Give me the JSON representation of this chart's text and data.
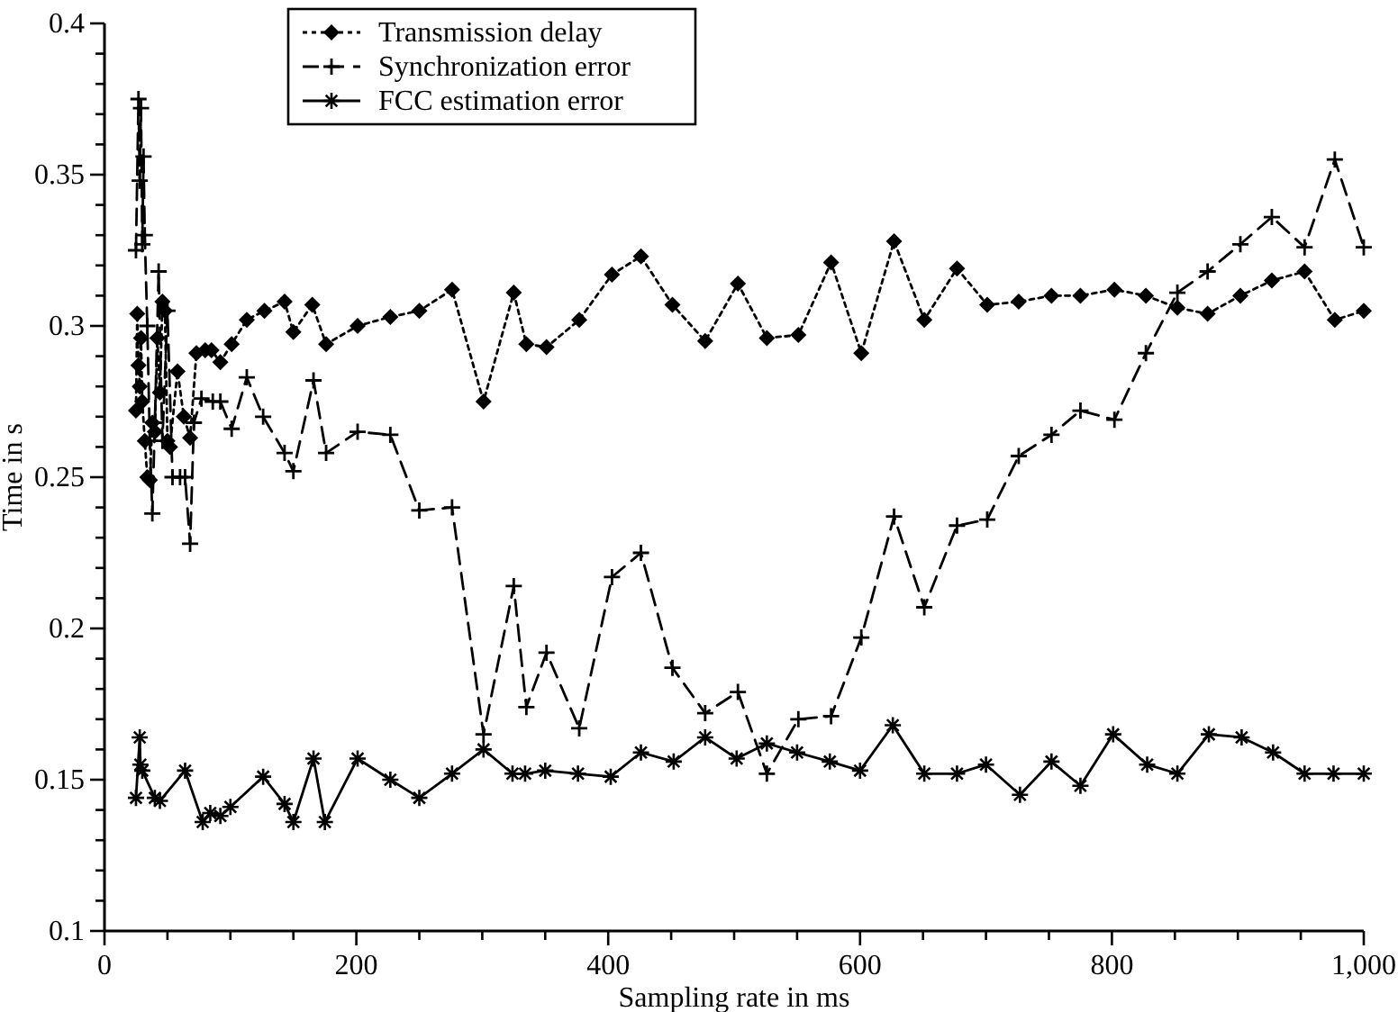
{
  "chart_data": {
    "type": "line",
    "xlabel": "Sampling rate in ms",
    "ylabel": "Time in s",
    "xlim": [
      0,
      1000
    ],
    "xticks": [
      0,
      {
        "value": 50,
        "label": null
      },
      {
        "value": 100,
        "label": null
      },
      {
        "value": 150,
        "label": null
      },
      200,
      {
        "value": 250,
        "label": null
      },
      {
        "value": 300,
        "label": null
      },
      {
        "value": 350,
        "label": null
      },
      400,
      {
        "value": 450,
        "label": null
      },
      {
        "value": 500,
        "label": null
      },
      {
        "value": 550,
        "label": null
      },
      600,
      {
        "value": 650,
        "label": null
      },
      {
        "value": 700,
        "label": null
      },
      {
        "value": 750,
        "label": null
      },
      800,
      {
        "value": 850,
        "label": null
      },
      {
        "value": 900,
        "label": null
      },
      {
        "value": 950,
        "label": null
      },
      {
        "value": 1000,
        "label": "1,000"
      }
    ],
    "ylim": [
      0.1,
      0.4
    ],
    "yticks": [
      0.1,
      {
        "value": 0.11,
        "label": null
      },
      {
        "value": 0.12,
        "label": null
      },
      {
        "value": 0.13,
        "label": null
      },
      {
        "value": 0.14,
        "label": null
      },
      0.15,
      {
        "value": 0.16,
        "label": null
      },
      {
        "value": 0.17,
        "label": null
      },
      {
        "value": 0.18,
        "label": null
      },
      {
        "value": 0.19,
        "label": null
      },
      0.2,
      {
        "value": 0.21,
        "label": null
      },
      {
        "value": 0.22,
        "label": null
      },
      {
        "value": 0.23,
        "label": null
      },
      {
        "value": 0.24,
        "label": null
      },
      0.25,
      {
        "value": 0.26,
        "label": null
      },
      {
        "value": 0.27,
        "label": null
      },
      {
        "value": 0.28,
        "label": null
      },
      {
        "value": 0.29,
        "label": null
      },
      0.3,
      {
        "value": 0.31,
        "label": null
      },
      {
        "value": 0.32,
        "label": null
      },
      {
        "value": 0.33,
        "label": null
      },
      {
        "value": 0.34,
        "label": null
      },
      0.35,
      {
        "value": 0.36,
        "label": null
      },
      {
        "value": 0.37,
        "label": null
      },
      {
        "value": 0.38,
        "label": null
      },
      {
        "value": 0.39,
        "label": null
      },
      0.4
    ],
    "grid": false,
    "legend": "top",
    "series": [
      {
        "name": "Transmission delay",
        "color": "#000000",
        "marker": "diamond",
        "line_style": "dotted",
        "x": [
          25,
          26,
          27,
          28,
          29,
          30,
          32,
          34,
          36,
          38,
          40,
          42,
          44,
          46,
          48,
          50,
          52,
          58,
          63,
          68,
          73,
          80,
          85,
          92,
          101,
          113,
          127,
          143,
          150,
          165,
          176,
          201,
          227,
          250,
          276,
          301,
          325,
          335,
          351,
          377,
          403,
          426,
          451,
          477,
          503,
          526,
          551,
          577,
          601,
          627,
          651,
          677,
          701,
          726,
          752,
          775,
          802,
          827,
          852,
          876,
          902,
          927,
          953,
          977,
          1000
        ],
        "values": [
          0.272,
          0.304,
          0.287,
          0.28,
          0.296,
          0.275,
          0.262,
          0.25,
          0.249,
          0.268,
          0.265,
          0.296,
          0.278,
          0.308,
          0.305,
          0.262,
          0.26,
          0.285,
          0.27,
          0.263,
          0.291,
          0.292,
          0.292,
          0.288,
          0.294,
          0.302,
          0.305,
          0.308,
          0.298,
          0.307,
          0.294,
          0.3,
          0.303,
          0.305,
          0.312,
          0.275,
          0.311,
          0.294,
          0.293,
          0.302,
          0.317,
          0.323,
          0.307,
          0.295,
          0.314,
          0.296,
          0.297,
          0.321,
          0.291,
          0.328,
          0.302,
          0.319,
          0.307,
          0.308,
          0.31,
          0.31,
          0.312,
          0.31,
          0.306,
          0.304,
          0.31,
          0.315,
          0.318,
          0.302,
          0.305
        ]
      },
      {
        "name": "Synchronization error",
        "color": "#000000",
        "marker": "cross",
        "line_style": "dashed",
        "x": [
          25,
          27,
          28,
          29,
          30,
          31,
          32,
          34,
          36,
          38,
          40,
          43,
          46,
          50,
          54,
          60,
          64,
          68,
          71,
          77,
          86,
          92,
          101,
          113,
          126,
          143,
          150,
          166,
          176,
          201,
          227,
          250,
          276,
          301,
          325,
          335,
          351,
          377,
          403,
          426,
          451,
          477,
          503,
          526,
          551,
          577,
          601,
          627,
          651,
          677,
          701,
          726,
          752,
          775,
          802,
          827,
          852,
          876,
          902,
          927,
          953,
          977,
          1000
        ],
        "values": [
          0.325,
          0.375,
          0.348,
          0.372,
          0.327,
          0.356,
          0.33,
          0.3,
          0.262,
          0.238,
          0.268,
          0.318,
          0.262,
          0.305,
          0.25,
          0.25,
          0.25,
          0.228,
          0.268,
          0.276,
          0.275,
          0.275,
          0.266,
          0.283,
          0.27,
          0.258,
          0.252,
          0.282,
          0.258,
          0.265,
          0.264,
          0.239,
          0.24,
          0.165,
          0.214,
          0.174,
          0.192,
          0.167,
          0.217,
          0.225,
          0.187,
          0.172,
          0.179,
          0.152,
          0.17,
          0.171,
          0.197,
          0.237,
          0.207,
          0.234,
          0.236,
          0.257,
          0.264,
          0.272,
          0.269,
          0.291,
          0.311,
          0.318,
          0.327,
          0.336,
          0.326,
          0.355,
          0.326
        ]
      },
      {
        "name": "FCC estimation error",
        "color": "#000000",
        "marker": "star",
        "line_style": "solid",
        "x": [
          25,
          28,
          28.5,
          30,
          40,
          44,
          64,
          78,
          84,
          92,
          100,
          126,
          143,
          150,
          166,
          175,
          201,
          227,
          250,
          276,
          301,
          324,
          334,
          350,
          376,
          402,
          426,
          452,
          477,
          502,
          526,
          550,
          576,
          600,
          626,
          651,
          677,
          700,
          727,
          752,
          775,
          801,
          828,
          852,
          877,
          903,
          928,
          953,
          976,
          1000
        ],
        "values": [
          0.144,
          0.164,
          0.155,
          0.153,
          0.144,
          0.143,
          0.153,
          0.136,
          0.139,
          0.138,
          0.141,
          0.151,
          0.142,
          0.136,
          0.157,
          0.136,
          0.157,
          0.15,
          0.144,
          0.152,
          0.16,
          0.152,
          0.152,
          0.153,
          0.152,
          0.151,
          0.159,
          0.156,
          0.164,
          0.157,
          0.162,
          0.159,
          0.156,
          0.153,
          0.168,
          0.152,
          0.152,
          0.155,
          0.145,
          0.156,
          0.148,
          0.165,
          0.155,
          0.152,
          0.165,
          0.164,
          0.159,
          0.152,
          0.152,
          0.152
        ]
      }
    ]
  }
}
